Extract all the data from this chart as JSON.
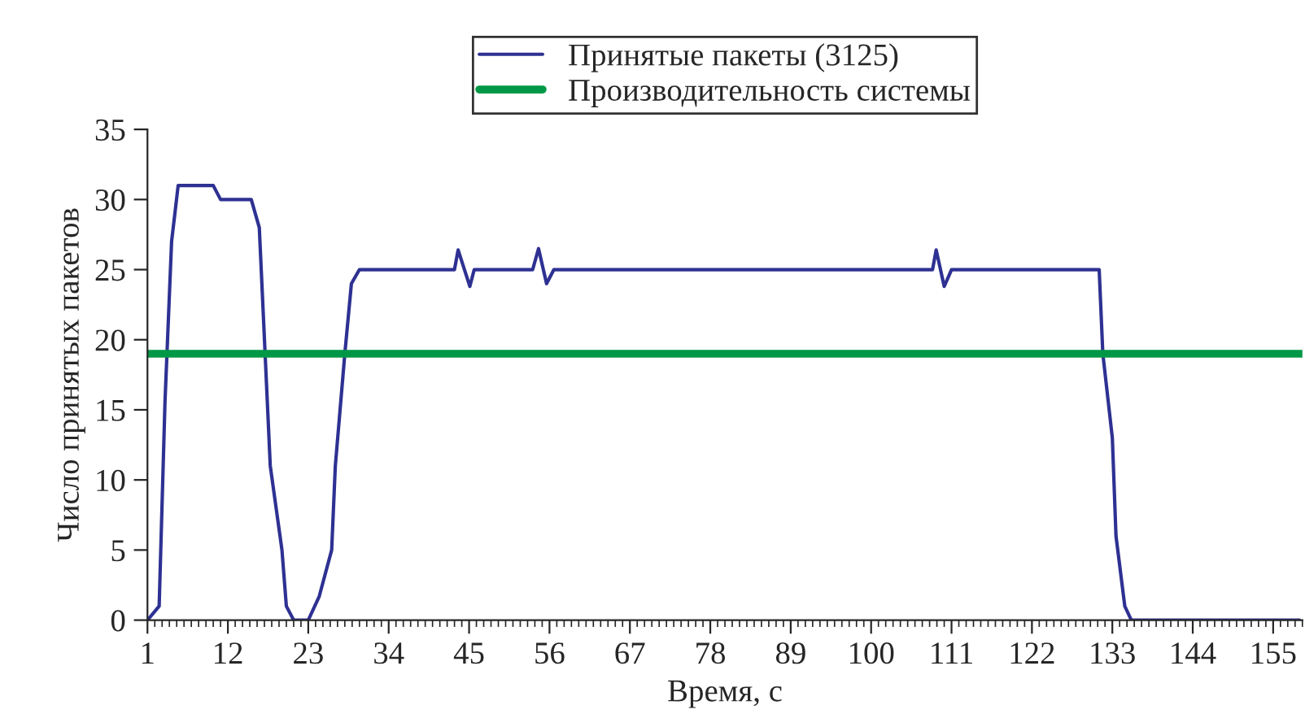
{
  "chart_data": {
    "type": "line",
    "xlabel": "Время, с",
    "ylabel": "Число принятых пакетов",
    "series": [
      {
        "name": "Принятые пакеты (3125)",
        "color": "#2e3192",
        "x": [
          1,
          2.6,
          3.4,
          4.3,
          5.2,
          10,
          11,
          15.2,
          16.3,
          17.8,
          19.4,
          20,
          21,
          23,
          24.5,
          26.2,
          26.7,
          28,
          28.9,
          30,
          43,
          43.5,
          45.1,
          45.7,
          53.7,
          54.5,
          55.6,
          56.6,
          108.4,
          108.9,
          110,
          111,
          131.2,
          131.7,
          133,
          133.5,
          134.7,
          135.6,
          158.6
        ],
        "values": [
          0,
          1,
          15.6,
          27,
          31,
          31,
          30,
          30,
          28,
          11,
          5,
          1,
          0,
          0,
          1.7,
          5,
          11,
          19,
          24,
          25,
          25,
          26.4,
          23.8,
          25,
          25,
          26.5,
          24,
          25,
          25,
          26.4,
          23.8,
          25,
          25,
          19,
          13,
          6,
          1,
          0,
          0
        ]
      },
      {
        "name": "Производительность системы",
        "color": "#009846",
        "x": [
          1,
          159
        ],
        "values": [
          19,
          19
        ]
      }
    ],
    "xlim": [
      1,
      159
    ],
    "xticks": [
      1,
      12,
      23,
      34,
      45,
      56,
      67,
      78,
      89,
      100,
      111,
      122,
      133,
      144,
      155
    ],
    "ylim": [
      0,
      35
    ],
    "yticks": [
      0,
      5,
      10,
      15,
      20,
      25,
      30,
      35
    ],
    "legend": "top",
    "grid": false
  }
}
